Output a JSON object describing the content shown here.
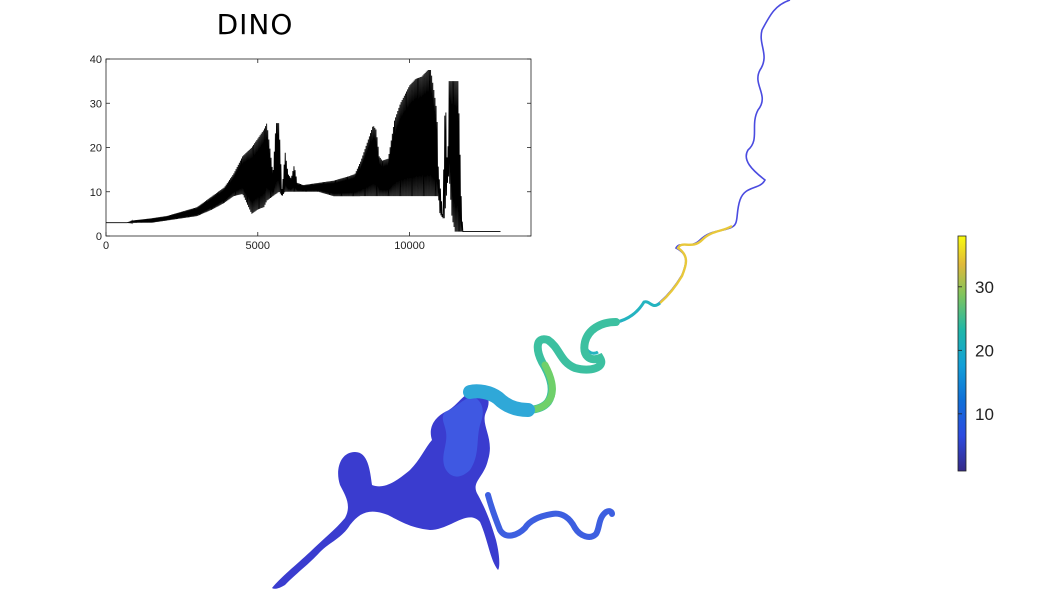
{
  "title": "DINO",
  "chart_data": [
    {
      "type": "line",
      "title": "DINO",
      "xlabel": "",
      "ylabel": "",
      "xlim": [
        0,
        14000
      ],
      "ylim": [
        0,
        40
      ],
      "xticks": [
        0,
        5000,
        10000
      ],
      "yticks": [
        0,
        10,
        20,
        30,
        40
      ],
      "grid": false,
      "line_color": "#000000",
      "envelope": {
        "x": [
          0,
          700,
          900,
          1500,
          2000,
          2500,
          3000,
          3500,
          3900,
          4200,
          4500,
          4800,
          5000,
          5200,
          5300,
          5500,
          5600,
          5700,
          5800,
          5900,
          6000,
          6100,
          6200,
          6300,
          6500,
          7000,
          7500,
          8000,
          8200,
          8400,
          8600,
          8800,
          8900,
          9000,
          9100,
          9300,
          9500,
          9700,
          10000,
          10200,
          10400,
          10600,
          10700,
          10800,
          10900,
          10950,
          11000,
          11100,
          11150,
          11200,
          11250,
          11300,
          11400,
          11500,
          11600,
          11700,
          11750,
          11800,
          13000
        ],
        "high": [
          3,
          3,
          3.5,
          4,
          4.5,
          5.5,
          6.5,
          9,
          11,
          14,
          18,
          20,
          22,
          24,
          25.5,
          14,
          25.5,
          25.5,
          10,
          19,
          14,
          13,
          16,
          12,
          11.5,
          12,
          12.5,
          13.5,
          14,
          17,
          21,
          25,
          24,
          18,
          17,
          17.5,
          26,
          30,
          34,
          35.5,
          36,
          37.5,
          37.5,
          33,
          28,
          14,
          12,
          4,
          27,
          28,
          12,
          35,
          35,
          35,
          35,
          9,
          1,
          1,
          1
        ],
        "low": [
          3,
          3,
          3,
          3,
          3.5,
          4,
          4.5,
          6,
          7.5,
          9,
          9.5,
          5,
          6,
          6.5,
          8,
          9,
          9.5,
          10,
          9,
          10,
          10,
          10,
          10,
          10,
          10,
          10,
          9,
          9,
          9,
          9,
          9,
          9,
          9,
          9,
          9,
          9,
          9,
          9,
          9,
          9,
          9,
          9,
          9,
          9,
          9,
          9,
          5,
          4,
          4,
          8,
          12,
          14,
          4,
          1,
          1,
          1,
          1,
          1,
          1
        ]
      }
    },
    {
      "type": "heatmap",
      "title": "",
      "colormap": "parula",
      "clim": [
        1,
        38
      ],
      "colorbar_ticks": [
        10,
        20,
        30
      ],
      "colors": {
        "low": "#352a87",
        "mid_low": "#0f6fd8",
        "mid": "#17aac2",
        "mid_high": "#80c45c",
        "high": "#f9fb0e"
      }
    }
  ]
}
